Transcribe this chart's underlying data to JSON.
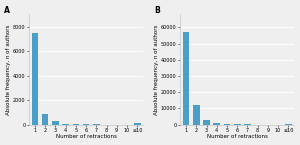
{
  "panel_A": {
    "label": "A",
    "x_labels": [
      "1",
      "2",
      "3",
      "4",
      "5",
      "6",
      "7",
      "8",
      "9",
      "10",
      "≥10"
    ],
    "values": [
      7500,
      900,
      280,
      70,
      35,
      18,
      10,
      6,
      4,
      3,
      150
    ],
    "ylim": [
      0,
      9000
    ],
    "yticks": [
      0,
      2000,
      4000,
      6000,
      8000
    ],
    "bar_color": "#4a9ec8",
    "xlabel": "Number of retractions",
    "ylabel": "Absolute frequency, n of authors"
  },
  "panel_B": {
    "label": "B",
    "x_labels": [
      "1",
      "2",
      "3",
      "4",
      "5",
      "6",
      "7",
      "8",
      "9",
      "10",
      "≥10"
    ],
    "values": [
      57000,
      12000,
      3000,
      700,
      300,
      150,
      80,
      50,
      30,
      15,
      400
    ],
    "ylim": [
      0,
      68000
    ],
    "yticks": [
      0,
      10000,
      20000,
      30000,
      40000,
      50000,
      60000
    ],
    "bar_color": "#4a9ec8",
    "xlabel": "Number of retractions",
    "ylabel": "Absolute frequency, n of authors"
  },
  "background_color": "#efefef",
  "grid_color": "#ffffff",
  "spine_color": "#bbbbbb",
  "label_fontsize": 4.0,
  "tick_fontsize": 3.5,
  "panel_label_fontsize": 5.5
}
